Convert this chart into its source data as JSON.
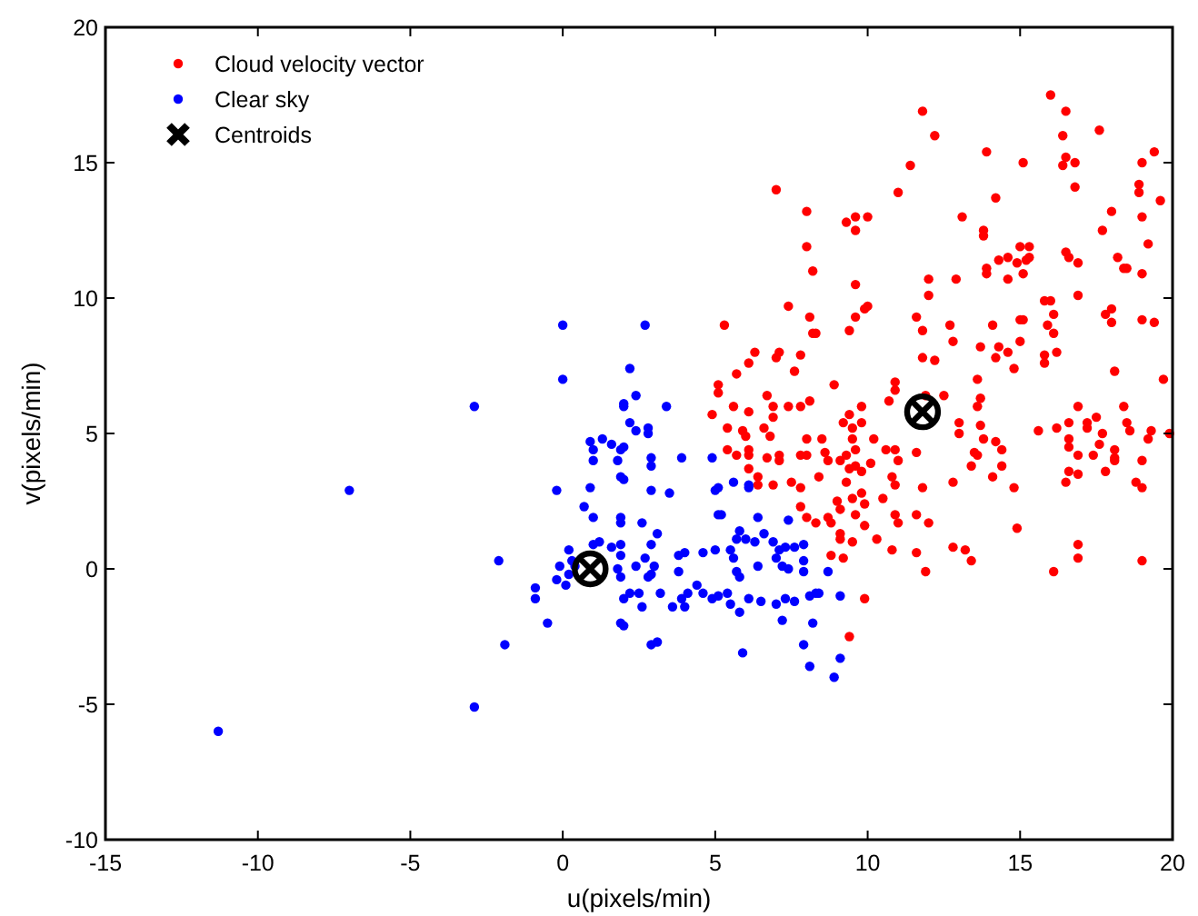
{
  "chart_data": {
    "type": "scatter",
    "xlabel": "u(pixels/min)",
    "ylabel": "v(pixels/min)",
    "xlim": [
      -15,
      20
    ],
    "ylim": [
      -10,
      20
    ],
    "xticks": [
      -15,
      -10,
      -5,
      0,
      5,
      10,
      15,
      20
    ],
    "yticks": [
      -10,
      -5,
      0,
      5,
      10,
      15,
      20
    ],
    "grid": false,
    "legend": "top left",
    "series": [
      {
        "name": "Cloud velocity vector",
        "color": "#ff0000",
        "marker": "circle",
        "x": [
          5.3,
          8.1,
          8.2,
          8.3,
          9.6,
          9.4,
          9.9,
          6.3,
          6.1,
          5.7,
          7.1,
          7.0,
          7.8,
          7.6,
          5.1,
          5.1,
          8.9,
          6.7,
          6.9,
          7.4,
          7.8,
          8.1,
          5.6,
          4.9,
          6.1,
          6.9,
          9.8,
          9.4,
          9.2,
          10.7,
          5.4,
          5.9,
          6.0,
          6.6,
          6.8,
          9.5,
          9.8,
          9.5,
          8.0,
          8.5,
          10.2,
          5.4,
          6.1,
          6.1,
          5.7,
          6.7,
          7.1,
          7.1,
          7.8,
          8.0,
          8.6,
          8.7,
          9.1,
          9.3,
          9.6,
          10.1,
          9.6,
          9.8,
          9.4,
          6.1,
          6.4,
          6.9,
          6.4,
          7.5,
          7.8,
          8.4,
          9.3,
          9.8,
          9.5,
          9.9,
          10.5,
          9.0,
          9.1,
          9.6,
          9.9,
          7.8,
          8.0,
          8.3,
          8.7,
          8.8,
          9.1,
          9.1,
          9.5,
          10.3,
          10.8,
          8.8,
          9.2,
          9.9,
          9.4,
          16.0,
          16.5,
          11.8,
          12.2,
          17.6,
          16.4,
          13.9,
          19.4,
          16.5,
          16.8,
          16.4,
          15.1,
          11.4,
          19.0,
          16.8,
          11.0,
          18.9,
          18.9,
          19.6,
          14.2,
          18.0,
          13.1,
          19.0,
          13.8,
          13.8,
          17.7,
          19.2,
          15.0,
          15.3,
          16.5,
          16.6,
          16.9,
          18.2,
          18.4,
          18.5,
          14.3,
          14.6,
          14.9,
          15.2,
          15.3,
          15.1,
          14.6,
          13.9,
          13.9,
          12.9,
          12.0,
          12.0,
          19.0,
          16.9,
          15.8,
          16.0,
          16.1,
          15.9,
          16.1,
          18.0,
          17.8,
          18.0,
          15.0,
          15.1,
          15.0,
          14.1,
          12.7,
          12.8,
          11.6,
          11.8,
          19.0,
          19.4,
          14.3,
          14.2,
          14.6,
          14.8,
          13.7,
          13.6,
          15.8,
          15.8,
          16.2,
          11.8,
          12.2,
          18.1,
          19.7,
          10.9,
          10.9,
          12.5,
          11.9,
          13.7,
          13.6,
          16.9,
          18.4,
          13.0,
          13.0,
          13.7,
          15.6,
          16.2,
          16.6,
          17.2,
          17.5,
          17.2,
          18.5,
          18.6,
          19.3,
          19.9,
          13.8,
          14.2,
          16.6,
          16.6,
          17.7,
          17.6,
          18.1,
          18.1,
          19.2,
          13.5,
          13.6,
          14.4,
          13.4,
          14.1,
          14.4,
          16.9,
          17.4,
          17.8,
          18.1,
          16.6,
          16.9,
          16.5,
          19.0,
          12.8,
          14.8,
          18.8,
          19.0,
          14.9,
          12.8,
          13.2,
          13.4,
          16.9,
          16.9,
          19.0,
          16.1,
          11.6,
          11.9,
          7.0,
          8.0,
          9.3,
          9.6,
          10.0,
          9.6,
          8.0,
          8.2,
          9.6,
          10.0,
          7.4,
          10.6,
          10.9,
          11.0,
          10.8,
          10.9,
          11.6,
          11.8,
          12.0,
          11.6,
          11.0,
          10.9
        ],
        "values": [
          9.0,
          9.3,
          8.7,
          8.7,
          9.3,
          8.8,
          9.6,
          8.0,
          7.6,
          7.2,
          8.0,
          7.8,
          7.9,
          7.3,
          6.8,
          6.5,
          6.8,
          6.4,
          6.0,
          6.0,
          6.0,
          6.2,
          6.0,
          5.7,
          5.8,
          5.6,
          6.0,
          5.7,
          5.4,
          6.2,
          5.2,
          5.1,
          4.9,
          5.2,
          4.9,
          5.2,
          5.4,
          4.8,
          4.8,
          4.8,
          4.8,
          4.4,
          4.4,
          4.2,
          4.2,
          4.1,
          4.2,
          4.0,
          4.2,
          4.2,
          4.3,
          4.0,
          4.0,
          4.2,
          4.4,
          3.9,
          3.8,
          3.6,
          3.7,
          3.7,
          3.4,
          3.1,
          3.1,
          3.2,
          3.0,
          3.4,
          3.2,
          2.8,
          2.6,
          2.4,
          2.6,
          2.5,
          2.2,
          2.0,
          1.6,
          2.3,
          1.9,
          1.7,
          1.9,
          1.7,
          1.3,
          1.1,
          1.0,
          1.1,
          0.7,
          0.5,
          0.4,
          -1.1,
          -2.5,
          17.5,
          16.9,
          16.9,
          16.0,
          16.2,
          16.0,
          15.4,
          15.4,
          15.2,
          15.0,
          14.9,
          15.0,
          14.9,
          15.0,
          14.1,
          13.9,
          14.2,
          13.9,
          13.6,
          13.7,
          13.2,
          13.0,
          13.0,
          12.5,
          12.3,
          12.5,
          12.0,
          11.9,
          11.9,
          11.7,
          11.5,
          11.3,
          11.5,
          11.1,
          11.1,
          11.4,
          11.5,
          11.3,
          11.4,
          11.5,
          10.9,
          10.7,
          11.1,
          10.9,
          10.7,
          10.7,
          10.1,
          10.9,
          10.1,
          9.9,
          9.9,
          9.4,
          9.0,
          8.7,
          9.6,
          9.4,
          9.1,
          9.2,
          9.2,
          8.4,
          9.0,
          9.0,
          8.4,
          9.3,
          8.8,
          9.2,
          9.1,
          8.2,
          7.8,
          8.0,
          7.4,
          8.2,
          7.0,
          7.9,
          7.6,
          8.0,
          7.8,
          7.7,
          7.3,
          7.0,
          6.9,
          6.6,
          6.4,
          6.4,
          6.3,
          6.0,
          6.0,
          6.0,
          5.4,
          5.0,
          5.3,
          5.1,
          5.2,
          5.4,
          5.4,
          5.6,
          5.2,
          5.4,
          5.1,
          5.1,
          5.0,
          4.8,
          4.7,
          4.8,
          4.5,
          5.0,
          4.6,
          4.4,
          4.1,
          4.8,
          4.3,
          4.2,
          4.4,
          3.8,
          3.4,
          3.8,
          4.2,
          4.2,
          3.6,
          4.0,
          3.6,
          3.5,
          3.2,
          4.0,
          3.2,
          3.0,
          3.2,
          3.0,
          1.5,
          0.8,
          0.7,
          0.3,
          0.9,
          0.4,
          0.3,
          -0.1,
          0.6,
          -0.1,
          14.0,
          13.2,
          12.8,
          13.0,
          13.0,
          12.5,
          11.9,
          11.0,
          10.5,
          9.7,
          9.7,
          4.4,
          4.4,
          4.0,
          3.4,
          3.1,
          4.3,
          3.0,
          1.7,
          2.0,
          1.7,
          2.0
        ]
      },
      {
        "name": "Clear sky",
        "color": "#0000ff",
        "marker": "circle",
        "x": [
          0,
          0,
          -2.9,
          -7,
          -11.3,
          -2.9,
          -1.9,
          -2.1,
          -0.9,
          -0.9,
          -0.5,
          -0.2,
          -0.1,
          0.2,
          0.4,
          -0.2,
          0.1,
          0.3,
          0.2,
          0.9,
          1.0,
          1.3,
          1.6,
          1.9,
          1.0,
          1.8,
          0.9,
          0.7,
          1.0,
          1.0,
          1.2,
          1.6,
          1.9,
          2.0,
          1.9,
          1.9,
          1.9,
          2.0,
          1.8,
          2.7,
          2.2,
          2.4,
          2.0,
          3.4,
          2.2,
          2.4,
          2.8,
          2.8,
          2.0,
          2.9,
          2.9,
          3.9,
          4.9,
          2.0,
          2.9,
          3.5,
          5.1,
          5.0,
          5.6,
          6.1,
          6.1,
          5.1,
          5.2,
          6.4,
          7.4,
          1.9,
          2.6,
          3.1,
          2.9,
          5.8,
          5.7,
          6.0,
          6.6,
          6.3,
          6.9,
          7.1,
          7.3,
          7.6,
          7.9,
          1.9,
          2.7,
          3.0,
          2.9,
          2.4,
          3.8,
          4.0,
          4.6,
          5.0,
          5.5,
          5.6,
          7.0,
          7.2,
          7.4,
          7.9,
          7.9,
          3.8,
          5.7,
          5.8,
          6.4,
          8.7,
          1.9,
          2.8,
          2.2,
          2.5,
          3.2,
          4.1,
          3.9,
          4.4,
          4.6,
          4.9,
          5.1,
          5.4,
          5.5,
          5.8,
          6.1,
          6.5,
          7.0,
          7.3,
          7.6,
          8.1,
          8.3,
          8.4,
          9.1,
          2.6,
          3.6,
          4.0,
          2.0,
          7.2,
          8.2,
          2.9,
          3.1,
          5.9,
          7.9,
          9.1,
          8.1,
          8.9
        ],
        "values": [
          9.0,
          7.0,
          6.0,
          2.9,
          -6,
          -5.1,
          -2.8,
          0.3,
          -0.7,
          -1.1,
          -2,
          2.9,
          0.1,
          -0.2,
          0.1,
          -0.4,
          -0.6,
          0.3,
          0.7,
          4.7,
          4.4,
          4.8,
          4.6,
          4.4,
          4.0,
          4.0,
          3.0,
          2.3,
          1.9,
          0.9,
          1.0,
          0.8,
          0.9,
          6.0,
          1.9,
          3.4,
          -2.0,
          -1.1,
          0,
          9.0,
          7.4,
          6.4,
          6.1,
          6.0,
          5.4,
          5.1,
          5.2,
          5.0,
          4.5,
          4.1,
          3.8,
          4.1,
          4.1,
          3.3,
          2.9,
          2.8,
          3.0,
          2.9,
          3.2,
          3.1,
          3.0,
          2.0,
          2.0,
          1.9,
          1.8,
          1.7,
          1.7,
          1.3,
          0.9,
          1.4,
          1.1,
          1.1,
          1.3,
          1.0,
          1.0,
          0.7,
          0.8,
          0.8,
          0.9,
          0.5,
          0.4,
          0.1,
          -0.2,
          0.1,
          0.5,
          0.6,
          0.6,
          0.7,
          0.7,
          0.4,
          0.4,
          0.1,
          0,
          0.3,
          -0.1,
          -0.1,
          -0.1,
          -0.3,
          0.1,
          -0.1,
          -0.3,
          -0.3,
          -0.9,
          -0.9,
          -0.9,
          -0.9,
          -1.1,
          -0.6,
          -0.9,
          -1.1,
          -1.0,
          -0.9,
          -1.3,
          -1.6,
          -1.1,
          -1.2,
          -1.3,
          -1.1,
          -1.2,
          -1.0,
          -0.9,
          -0.9,
          -1.0,
          -1.4,
          -1.4,
          -1.4,
          -2.1,
          -1.9,
          -2.0,
          -2.8,
          -2.7,
          -3.1,
          -2.8,
          -3.3,
          -3.6,
          -4.0
        ]
      },
      {
        "name": "Centroids",
        "color": "#000000",
        "marker": "cross",
        "x": [
          0.9,
          11.8
        ],
        "values": [
          0.0,
          5.8
        ]
      }
    ]
  }
}
